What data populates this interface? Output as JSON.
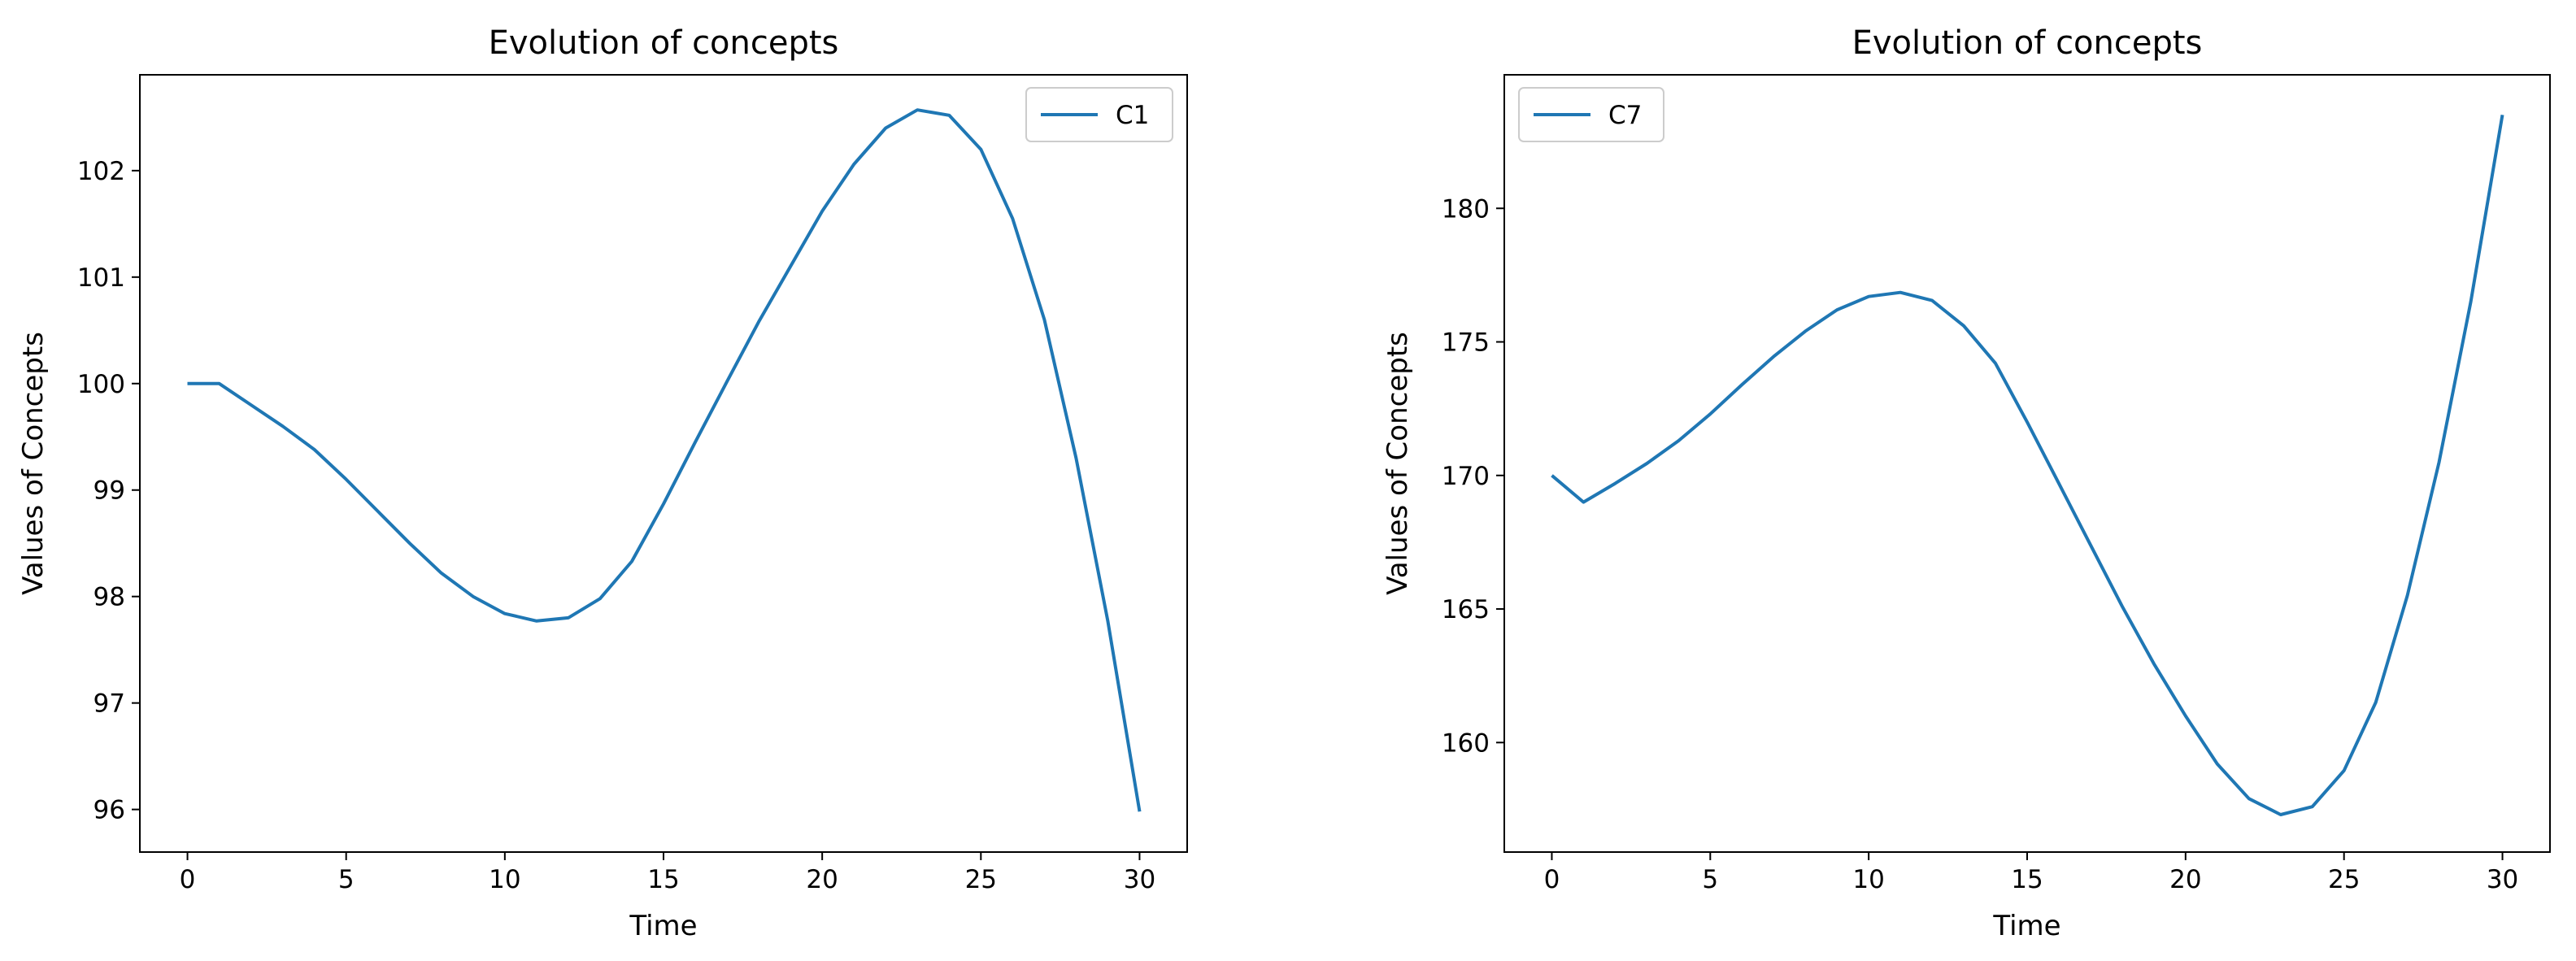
{
  "chart_data": [
    {
      "type": "line",
      "title": "Evolution of concepts",
      "xlabel": "Time",
      "ylabel": "Values of Concepts",
      "xlim": [
        -1.5,
        31.5
      ],
      "ylim": [
        95.6,
        102.9
      ],
      "xticks": [
        0,
        5,
        10,
        15,
        20,
        25,
        30
      ],
      "yticks": [
        96,
        97,
        98,
        99,
        100,
        101,
        102
      ],
      "grid": false,
      "legend": "upper right",
      "series": [
        {
          "name": "C1",
          "color": "#1f77b4",
          "x": [
            0,
            1,
            2,
            3,
            4,
            5,
            6,
            7,
            8,
            9,
            10,
            11,
            12,
            13,
            14,
            15,
            16,
            17,
            18,
            19,
            20,
            21,
            22,
            23,
            24,
            25,
            26,
            27,
            28,
            29,
            30
          ],
          "values": [
            100.0,
            100.0,
            99.8,
            99.6,
            99.38,
            99.1,
            98.8,
            98.5,
            98.22,
            98.0,
            97.84,
            97.77,
            97.8,
            97.98,
            98.33,
            98.87,
            99.45,
            100.02,
            100.58,
            101.1,
            101.62,
            102.06,
            102.4,
            102.57,
            102.52,
            102.2,
            101.55,
            100.6,
            99.3,
            97.77,
            95.98
          ]
        }
      ]
    },
    {
      "type": "line",
      "title": "Evolution of concepts",
      "xlabel": "Time",
      "ylabel": "Values of Concepts",
      "xlim": [
        -1.5,
        31.5
      ],
      "ylim": [
        155.9,
        185.0
      ],
      "xticks": [
        0,
        5,
        10,
        15,
        20,
        25,
        30
      ],
      "yticks": [
        160,
        165,
        170,
        175,
        180
      ],
      "grid": false,
      "legend": "upper left",
      "series": [
        {
          "name": "C7",
          "color": "#1f77b4",
          "x": [
            0,
            1,
            2,
            3,
            4,
            5,
            6,
            7,
            8,
            9,
            10,
            11,
            12,
            13,
            14,
            15,
            16,
            17,
            18,
            19,
            20,
            21,
            22,
            23,
            24,
            25,
            26,
            27,
            28,
            29,
            30
          ],
          "values": [
            170.0,
            169.0,
            169.7,
            170.45,
            171.3,
            172.3,
            173.4,
            174.45,
            175.4,
            176.2,
            176.7,
            176.85,
            176.55,
            175.6,
            174.2,
            172.0,
            169.7,
            167.4,
            165.1,
            162.95,
            161.0,
            159.2,
            157.9,
            157.3,
            157.6,
            158.95,
            161.5,
            165.5,
            170.5,
            176.5,
            183.5
          ]
        }
      ]
    }
  ]
}
